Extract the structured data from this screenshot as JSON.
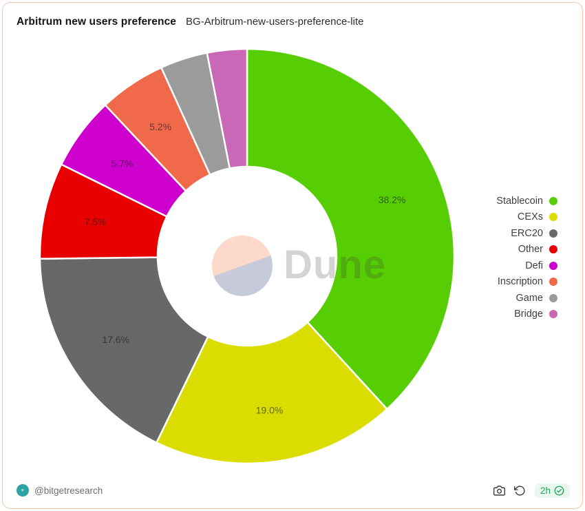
{
  "header": {
    "title": "Arbitrum new users preference",
    "query_name": "BG-Arbitrum-new-users-preference-lite"
  },
  "watermark": {
    "text": "Dune"
  },
  "chart_data": {
    "type": "pie",
    "subtype": "donut",
    "title": "Arbitrum new users preference",
    "start_angle_deg": 0,
    "direction": "clockwise",
    "legend_position": "right",
    "categories": [
      "Stablecoin",
      "CEXs",
      "ERC20",
      "Other",
      "Defi",
      "Inscription",
      "Game",
      "Bridge"
    ],
    "values": [
      38.2,
      19.0,
      17.6,
      7.5,
      5.7,
      5.2,
      3.7,
      3.1
    ],
    "displayed_labels": [
      "38.2%",
      "19.0%",
      "17.6%",
      "7.5%",
      "5.7%",
      "5.2%",
      "",
      ""
    ],
    "colors": [
      "#57ce04",
      "#dbdd00",
      "#686868",
      "#e80000",
      "#cd00cd",
      "#f1694b",
      "#9b9b9b",
      "#c868b6"
    ]
  },
  "footer": {
    "author": "@bitgetresearch",
    "refreshed_age": "2h"
  },
  "colors": {
    "card_border": "#f6c5ae",
    "badge_green": "#23a55c",
    "badge_background": "#e9f7ef",
    "avatar_teal": "#2ba2a6",
    "watermark_peach": "#fcd9ca",
    "watermark_lavender": "#c7cada"
  }
}
